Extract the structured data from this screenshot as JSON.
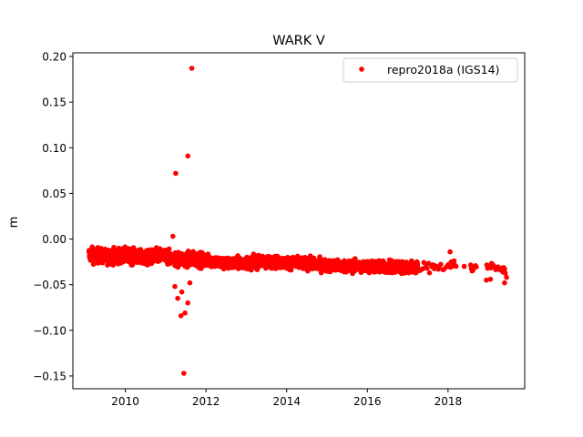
{
  "chart_data": {
    "type": "scatter",
    "title": "WARK V",
    "xlabel": "",
    "ylabel": "m",
    "xlim": [
      2008.7,
      2019.9
    ],
    "ylim": [
      -0.164,
      0.204
    ],
    "x_ticks": [
      2010,
      2012,
      2014,
      2016,
      2018
    ],
    "y_ticks": [
      -0.15,
      -0.1,
      -0.05,
      0.0,
      0.05,
      0.1,
      0.15,
      0.2
    ],
    "y_tick_labels": [
      "−0.15",
      "−0.10",
      "−0.05",
      "0.00",
      "0.05",
      "0.10",
      "0.15",
      "0.20"
    ],
    "grid": false,
    "legend": {
      "position": "top-right",
      "entries": [
        "repro2018a (IGS14)"
      ]
    },
    "series": [
      {
        "name": "repro2018a (IGS14)",
        "color": "#ff0000",
        "marker": "circle",
        "trend": [
          [
            2009.1,
            -0.017
          ],
          [
            2009.5,
            -0.019
          ],
          [
            2010.0,
            -0.018
          ],
          [
            2010.5,
            -0.021
          ],
          [
            2010.9,
            -0.018
          ],
          [
            2011.2,
            -0.022
          ],
          [
            2011.6,
            -0.022
          ],
          [
            2012.0,
            -0.023
          ],
          [
            2012.5,
            -0.027
          ],
          [
            2013.0,
            -0.026
          ],
          [
            2013.5,
            -0.025
          ],
          [
            2014.0,
            -0.026
          ],
          [
            2014.5,
            -0.027
          ],
          [
            2015.0,
            -0.029
          ],
          [
            2015.5,
            -0.03
          ],
          [
            2016.0,
            -0.03
          ],
          [
            2016.5,
            -0.031
          ],
          [
            2017.0,
            -0.031
          ],
          [
            2017.5,
            -0.031
          ],
          [
            2018.0,
            -0.029
          ],
          [
            2018.5,
            -0.03
          ],
          [
            2019.0,
            -0.031
          ],
          [
            2019.45,
            -0.035
          ]
        ],
        "outliers": [
          [
            2011.25,
            0.072
          ],
          [
            2011.55,
            0.091
          ],
          [
            2011.65,
            0.187
          ],
          [
            2011.18,
            0.003
          ],
          [
            2011.23,
            -0.052
          ],
          [
            2011.3,
            -0.065
          ],
          [
            2011.38,
            -0.084
          ],
          [
            2011.48,
            -0.081
          ],
          [
            2011.55,
            -0.07
          ],
          [
            2011.45,
            -0.147
          ],
          [
            2011.4,
            -0.058
          ],
          [
            2011.6,
            -0.048
          ],
          [
            2018.05,
            -0.014
          ],
          [
            2018.15,
            -0.024
          ],
          [
            2018.4,
            -0.03
          ],
          [
            2018.6,
            -0.035
          ],
          [
            2018.95,
            -0.045
          ],
          [
            2019.05,
            -0.044
          ],
          [
            2019.4,
            -0.048
          ],
          [
            2019.45,
            -0.042
          ]
        ]
      }
    ]
  }
}
